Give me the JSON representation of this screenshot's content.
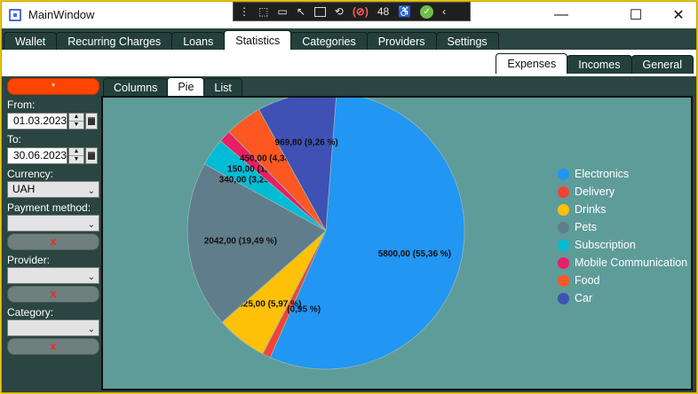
{
  "window": {
    "title": "MainWindow"
  },
  "debug_toolbar": {
    "counter": "48"
  },
  "main_tabs": [
    "Wallet",
    "Recurring Charges",
    "Loans",
    "Statistics",
    "Categories",
    "Providers",
    "Settings"
  ],
  "main_tab_active": 3,
  "sub_tabs": [
    "Expenses",
    "Incomes",
    "General"
  ],
  "sub_tab_active": 0,
  "filters": {
    "reset_label": "*",
    "from_label": "From:",
    "from_value": "01.03.2023",
    "to_label": "To:",
    "to_value": "30.06.2023",
    "currency_label": "Currency:",
    "currency_value": "UAH",
    "payment_label": "Payment method:",
    "payment_value": "",
    "provider_label": "Provider:",
    "provider_value": "",
    "category_label": "Category:",
    "category_value": "",
    "clear_label": "x"
  },
  "chart_tabs": [
    "Columns",
    "Pie",
    "List"
  ],
  "chart_tab_active": 1,
  "chart_data": {
    "type": "pie",
    "start_angle_deg": 85.6,
    "slices": [
      {
        "name": "Electronics",
        "value": 5800.0,
        "label": "5800,00 (55,36 %)",
        "color": "#2196f3"
      },
      {
        "name": "Delivery",
        "value": 100.0,
        "label": "100,00 (0,95 %)",
        "color": "#f44336"
      },
      {
        "name": "Drinks",
        "value": 625.0,
        "label": "625,00 (5,97 %)",
        "color": "#ffc107"
      },
      {
        "name": "Pets",
        "value": 2042.0,
        "label": "2042,00 (19,49 %)",
        "color": "#607d8b"
      },
      {
        "name": "Subscription",
        "value": 340.0,
        "label": "340,00 (3,25 %)",
        "color": "#00bcd4"
      },
      {
        "name": "Mobile Communication",
        "value": 150.0,
        "label": "150,00 (1,43 %)",
        "color": "#e91e63"
      },
      {
        "name": "Food",
        "value": 450.0,
        "label": "450,00 (4,30 %)",
        "color": "#ff5722"
      },
      {
        "name": "Car",
        "value": 969.8,
        "label": "969,80 (9,26 %)",
        "color": "#3f51b5"
      }
    ],
    "legend_position": "right"
  }
}
